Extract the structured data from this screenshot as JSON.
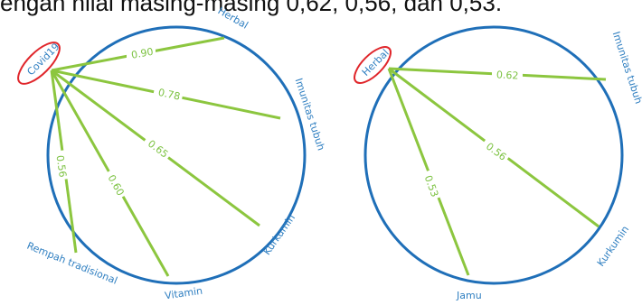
{
  "header_text": "engan nilai masing-masing 0,62, 0,56, dan 0,53.",
  "colors": {
    "circle": "#1f6fb8",
    "edge": "#8cc63f",
    "edge_label": "#7cc242",
    "node_label": "#2f7fc1",
    "highlight": "#e0262b"
  },
  "graphs": [
    {
      "hub": "Covid19",
      "edges": [
        {
          "target": "Herbal",
          "weight": "0.90"
        },
        {
          "target": "Imunitas tubuh",
          "weight": "0.78"
        },
        {
          "target": "Kurkumin",
          "weight": "0.65"
        },
        {
          "target": "Vitamin",
          "weight": "0.60"
        },
        {
          "target": "Rempah tradisional",
          "weight": "0.56"
        }
      ]
    },
    {
      "hub": "Herbal",
      "edges": [
        {
          "target": "Imunitas tubuh",
          "weight": "0.62"
        },
        {
          "target": "Kurkumin",
          "weight": "0.56"
        },
        {
          "target": "Jamu",
          "weight": "0.53"
        }
      ]
    }
  ]
}
